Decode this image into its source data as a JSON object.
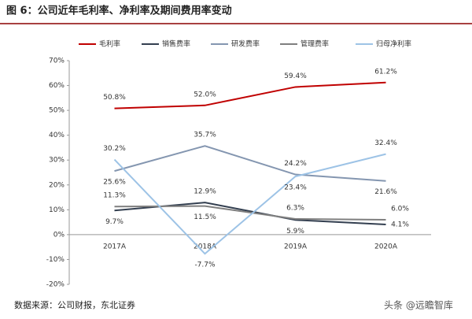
{
  "title": "图 6：公司近年毛利率、净利率及期间费用率变动",
  "chart_data": {
    "type": "line",
    "categories": [
      "2017A",
      "2018A",
      "2019A",
      "2020A"
    ],
    "ylim": [
      -20,
      70
    ],
    "yticks": [
      {
        "value": -20,
        "label": "-20%"
      },
      {
        "value": -10,
        "label": "-10%"
      },
      {
        "value": 0,
        "label": "0%"
      },
      {
        "value": 10,
        "label": "10%"
      },
      {
        "value": 20,
        "label": "20%"
      },
      {
        "value": 30,
        "label": "30%"
      },
      {
        "value": 40,
        "label": "40%"
      },
      {
        "value": 50,
        "label": "50%"
      },
      {
        "value": 60,
        "label": "60%"
      },
      {
        "value": 70,
        "label": "70%"
      }
    ],
    "series": [
      {
        "name": "毛利率",
        "color": "#c00000",
        "values": [
          50.8,
          52.0,
          59.4,
          61.2
        ],
        "value_labels": [
          "50.8%",
          "52.0%",
          "59.4%",
          "61.2%"
        ]
      },
      {
        "name": "销售费率",
        "color": "#333f50",
        "values": [
          9.7,
          12.9,
          5.9,
          4.1
        ],
        "value_labels": [
          "9.7%",
          "12.9%",
          "5.9%",
          "4.1%"
        ]
      },
      {
        "name": "研发费率",
        "color": "#8496b0",
        "values": [
          25.6,
          35.7,
          24.2,
          21.6
        ],
        "value_labels": [
          "25.6%",
          "35.7%",
          "24.2%",
          "21.6%"
        ]
      },
      {
        "name": "管理费率",
        "color": "#7f7f7f",
        "values": [
          11.3,
          11.5,
          6.3,
          6.0
        ],
        "value_labels": [
          "11.3%",
          "11.5%",
          "6.3%",
          "6.0%"
        ]
      },
      {
        "name": "归母净利率",
        "color": "#9dc3e6",
        "values": [
          30.2,
          -7.7,
          23.4,
          32.4
        ],
        "value_labels": [
          "30.2%",
          "-7.7%",
          "23.4%",
          "32.4%"
        ]
      }
    ]
  },
  "source": "数据来源：公司财报，东北证券",
  "watermark": "头条 @远瞻智库"
}
